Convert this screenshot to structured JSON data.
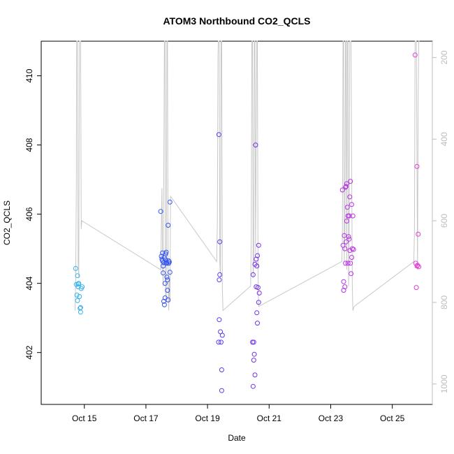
{
  "chart_data": {
    "type": "scatter",
    "title": "ATOM3 Northbound CO2_QCLS",
    "xlabel": "Date",
    "ylabel": "CO2_QCLS",
    "x_unit": "days (October)",
    "xlim": [
      13.6,
      26.3
    ],
    "ylim": [
      400.5,
      411.0
    ],
    "x_ticks": [
      {
        "value": 15,
        "label": "Oct 15"
      },
      {
        "value": 17,
        "label": "Oct 17"
      },
      {
        "value": 19,
        "label": "Oct 19"
      },
      {
        "value": 21,
        "label": "Oct 21"
      },
      {
        "value": 23,
        "label": "Oct 23"
      },
      {
        "value": 25,
        "label": "Oct 25"
      }
    ],
    "y_ticks": [
      {
        "value": 402,
        "label": "402"
      },
      {
        "value": 404,
        "label": "404"
      },
      {
        "value": 406,
        "label": "406"
      },
      {
        "value": 408,
        "label": "408"
      },
      {
        "value": 410,
        "label": "410"
      }
    ],
    "right_axis": {
      "reversed": true,
      "ylim": [
        1050,
        160
      ],
      "color": "#bdbdbd",
      "ticks": [
        {
          "value": 200,
          "label": "200"
        },
        {
          "value": 400,
          "label": "400"
        },
        {
          "value": 600,
          "label": "600"
        },
        {
          "value": 800,
          "label": "800"
        },
        {
          "value": 1000,
          "label": "1000"
        }
      ]
    },
    "color_gradient": [
      "#33b6ee",
      "#2f55f2",
      "#6a2ff2",
      "#b02fe8",
      "#e63ad8"
    ],
    "series": [
      {
        "marker": "open-circle",
        "points": [
          [
            14.72,
            404.43
          ],
          [
            14.74,
            403.97
          ],
          [
            14.76,
            403.66
          ],
          [
            14.78,
            404.22
          ],
          [
            14.8,
            403.98
          ],
          [
            14.82,
            404.0
          ],
          [
            14.78,
            403.5
          ],
          [
            14.84,
            403.62
          ],
          [
            14.86,
            403.28
          ],
          [
            14.88,
            403.3
          ],
          [
            14.88,
            403.17
          ],
          [
            14.9,
            403.85
          ],
          [
            14.93,
            403.9
          ],
          [
            14.8,
            403.9
          ],
          [
            17.48,
            406.08
          ],
          [
            17.5,
            404.78
          ],
          [
            17.52,
            404.7
          ],
          [
            17.54,
            404.88
          ],
          [
            17.56,
            404.5
          ],
          [
            17.58,
            404.6
          ],
          [
            17.56,
            404.3
          ],
          [
            17.58,
            403.48
          ],
          [
            17.6,
            403.38
          ],
          [
            17.62,
            403.58
          ],
          [
            17.62,
            404.0
          ],
          [
            17.64,
            404.85
          ],
          [
            17.64,
            404.68
          ],
          [
            17.66,
            404.9
          ],
          [
            17.68,
            404.58
          ],
          [
            17.68,
            404.18
          ],
          [
            17.7,
            404.1
          ],
          [
            17.7,
            403.8
          ],
          [
            17.72,
            405.68
          ],
          [
            17.74,
            404.65
          ],
          [
            17.74,
            404.58
          ],
          [
            17.76,
            404.62
          ],
          [
            17.78,
            404.32
          ],
          [
            17.78,
            406.35
          ],
          [
            17.66,
            404.6
          ],
          [
            17.6,
            404.74
          ],
          [
            17.72,
            403.52
          ],
          [
            17.54,
            404.65
          ],
          [
            19.37,
            408.3
          ],
          [
            19.38,
            404.1
          ],
          [
            19.4,
            405.2
          ],
          [
            19.4,
            404.25
          ],
          [
            19.38,
            402.95
          ],
          [
            19.42,
            402.6
          ],
          [
            19.44,
            402.3
          ],
          [
            19.36,
            402.3
          ],
          [
            19.46,
            401.5
          ],
          [
            19.48,
            402.5
          ],
          [
            19.46,
            400.9
          ],
          [
            20.46,
            402.3
          ],
          [
            20.48,
            404.25
          ],
          [
            20.5,
            402.3
          ],
          [
            20.5,
            401.78
          ],
          [
            20.52,
            401.95
          ],
          [
            20.54,
            404.55
          ],
          [
            20.56,
            408.0
          ],
          [
            20.58,
            404.7
          ],
          [
            20.58,
            403.9
          ],
          [
            20.6,
            404.5
          ],
          [
            20.62,
            404.8
          ],
          [
            20.6,
            403.15
          ],
          [
            20.62,
            402.85
          ],
          [
            20.64,
            403.88
          ],
          [
            20.66,
            405.1
          ],
          [
            20.66,
            403.45
          ],
          [
            20.68,
            403.72
          ],
          [
            20.48,
            401.02
          ],
          [
            20.54,
            401.35
          ],
          [
            23.38,
            406.7
          ],
          [
            23.4,
            405.1
          ],
          [
            23.42,
            404.05
          ],
          [
            23.42,
            403.8
          ],
          [
            23.44,
            405.38
          ],
          [
            23.46,
            405.0
          ],
          [
            23.46,
            403.9
          ],
          [
            23.48,
            404.58
          ],
          [
            23.48,
            406.78
          ],
          [
            23.5,
            406.8
          ],
          [
            23.5,
            405.2
          ],
          [
            23.52,
            406.88
          ],
          [
            23.52,
            405.8
          ],
          [
            23.54,
            406.2
          ],
          [
            23.56,
            405.95
          ],
          [
            23.56,
            404.58
          ],
          [
            23.58,
            405.35
          ],
          [
            23.6,
            405.95
          ],
          [
            23.62,
            404.95
          ],
          [
            23.62,
            406.5
          ],
          [
            23.64,
            406.95
          ],
          [
            23.64,
            404.58
          ],
          [
            23.66,
            404.28
          ],
          [
            23.68,
            406.28
          ],
          [
            23.68,
            404.75
          ],
          [
            23.7,
            405.0
          ],
          [
            23.72,
            405.95
          ],
          [
            23.74,
            404.98
          ],
          [
            23.6,
            405.28
          ],
          [
            25.74,
            410.6
          ],
          [
            25.76,
            404.58
          ],
          [
            25.78,
            403.88
          ],
          [
            25.8,
            404.5
          ],
          [
            25.8,
            407.38
          ],
          [
            25.82,
            404.52
          ],
          [
            25.84,
            405.42
          ],
          [
            25.86,
            404.48
          ]
        ]
      }
    ],
    "pressure_trace": [
      [
        14.7,
        820
      ],
      [
        14.72,
        740
      ],
      [
        14.74,
        520
      ],
      [
        14.75,
        160
      ],
      [
        14.78,
        160
      ],
      [
        14.8,
        700
      ],
      [
        14.82,
        740
      ],
      [
        14.84,
        160
      ],
      [
        14.88,
        160
      ],
      [
        14.9,
        620
      ],
      [
        14.92,
        600
      ],
      [
        17.48,
        720
      ],
      [
        17.5,
        620
      ],
      [
        17.52,
        520
      ],
      [
        17.54,
        700
      ],
      [
        17.56,
        760
      ],
      [
        17.58,
        500
      ],
      [
        17.6,
        160
      ],
      [
        17.62,
        160
      ],
      [
        17.64,
        780
      ],
      [
        17.66,
        800
      ],
      [
        17.68,
        160
      ],
      [
        17.7,
        160
      ],
      [
        17.72,
        760
      ],
      [
        17.74,
        820
      ],
      [
        17.76,
        740
      ],
      [
        17.78,
        800
      ],
      [
        17.8,
        540
      ],
      [
        19.3,
        700
      ],
      [
        19.32,
        600
      ],
      [
        19.34,
        200
      ],
      [
        19.35,
        160
      ],
      [
        19.38,
        160
      ],
      [
        19.4,
        700
      ],
      [
        19.42,
        740
      ],
      [
        19.44,
        160
      ],
      [
        19.46,
        160
      ],
      [
        19.48,
        760
      ],
      [
        19.5,
        820
      ],
      [
        20.4,
        760
      ],
      [
        20.42,
        650
      ],
      [
        20.44,
        160
      ],
      [
        20.46,
        160
      ],
      [
        20.48,
        740
      ],
      [
        20.5,
        700
      ],
      [
        20.52,
        160
      ],
      [
        20.54,
        160
      ],
      [
        20.56,
        680
      ],
      [
        20.6,
        160
      ],
      [
        20.62,
        160
      ],
      [
        20.64,
        720
      ],
      [
        20.66,
        810
      ],
      [
        23.36,
        700
      ],
      [
        23.38,
        650
      ],
      [
        23.4,
        160
      ],
      [
        23.42,
        160
      ],
      [
        23.44,
        700
      ],
      [
        23.46,
        620
      ],
      [
        23.48,
        160
      ],
      [
        23.5,
        160
      ],
      [
        23.52,
        720
      ],
      [
        23.54,
        160
      ],
      [
        23.56,
        160
      ],
      [
        23.58,
        760
      ],
      [
        23.6,
        620
      ],
      [
        23.62,
        160
      ],
      [
        23.66,
        160
      ],
      [
        23.7,
        760
      ],
      [
        23.72,
        820
      ],
      [
        23.76,
        810
      ],
      [
        25.7,
        700
      ],
      [
        25.72,
        620
      ],
      [
        25.74,
        160
      ],
      [
        25.78,
        160
      ],
      [
        25.82,
        720
      ],
      [
        25.84,
        300
      ],
      [
        25.86,
        160
      ],
      [
        25.88,
        160
      ]
    ]
  }
}
